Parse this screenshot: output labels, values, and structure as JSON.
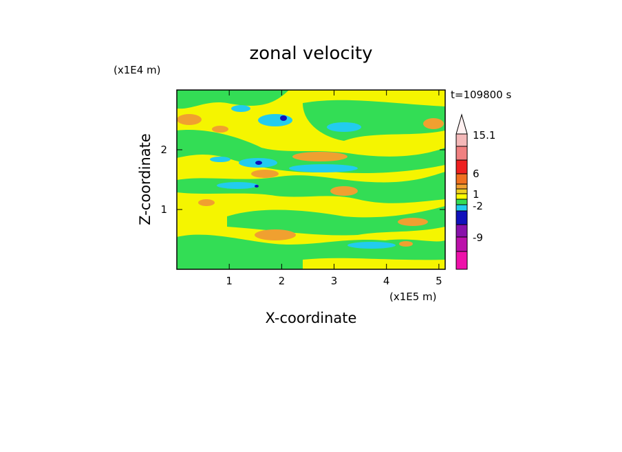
{
  "chart_data": {
    "type": "contour",
    "title": "zonal velocity",
    "x_label": "X-coordinate",
    "y_label": "Z-coordinate",
    "x_unit": "(x1E5 m)",
    "y_unit": "(x1E4 m)",
    "time_label": "t=109800 s",
    "xlim": [
      0,
      5.12
    ],
    "xticks": [
      1,
      2,
      3,
      4,
      5
    ],
    "ylim": [
      0,
      3
    ],
    "yticks": [
      1,
      2
    ],
    "colorbar_ticks": [
      15.1,
      6,
      1,
      -2,
      -9
    ]
  }
}
